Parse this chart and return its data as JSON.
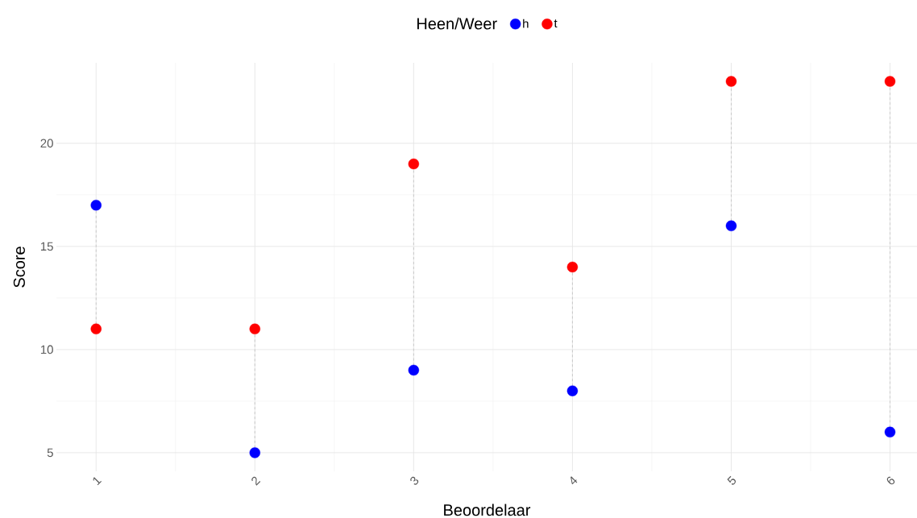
{
  "chart_data": {
    "type": "scatter",
    "xlabel": "Beoordelaar",
    "ylabel": "Score",
    "legend_title": "Heen/Weer",
    "categories": [
      "1",
      "2",
      "3",
      "4",
      "5",
      "6"
    ],
    "series": [
      {
        "name": "h",
        "color": "#0000ff",
        "values": [
          17,
          5,
          9,
          8,
          16,
          6
        ]
      },
      {
        "name": "t",
        "color": "#ff0000",
        "values": [
          11,
          11,
          19,
          14,
          23,
          23
        ]
      }
    ],
    "ylim": [
      4.1,
      23.9
    ],
    "yticks": [
      5,
      10,
      15,
      20
    ],
    "grid": true,
    "legend": "top",
    "marker": "circle"
  }
}
